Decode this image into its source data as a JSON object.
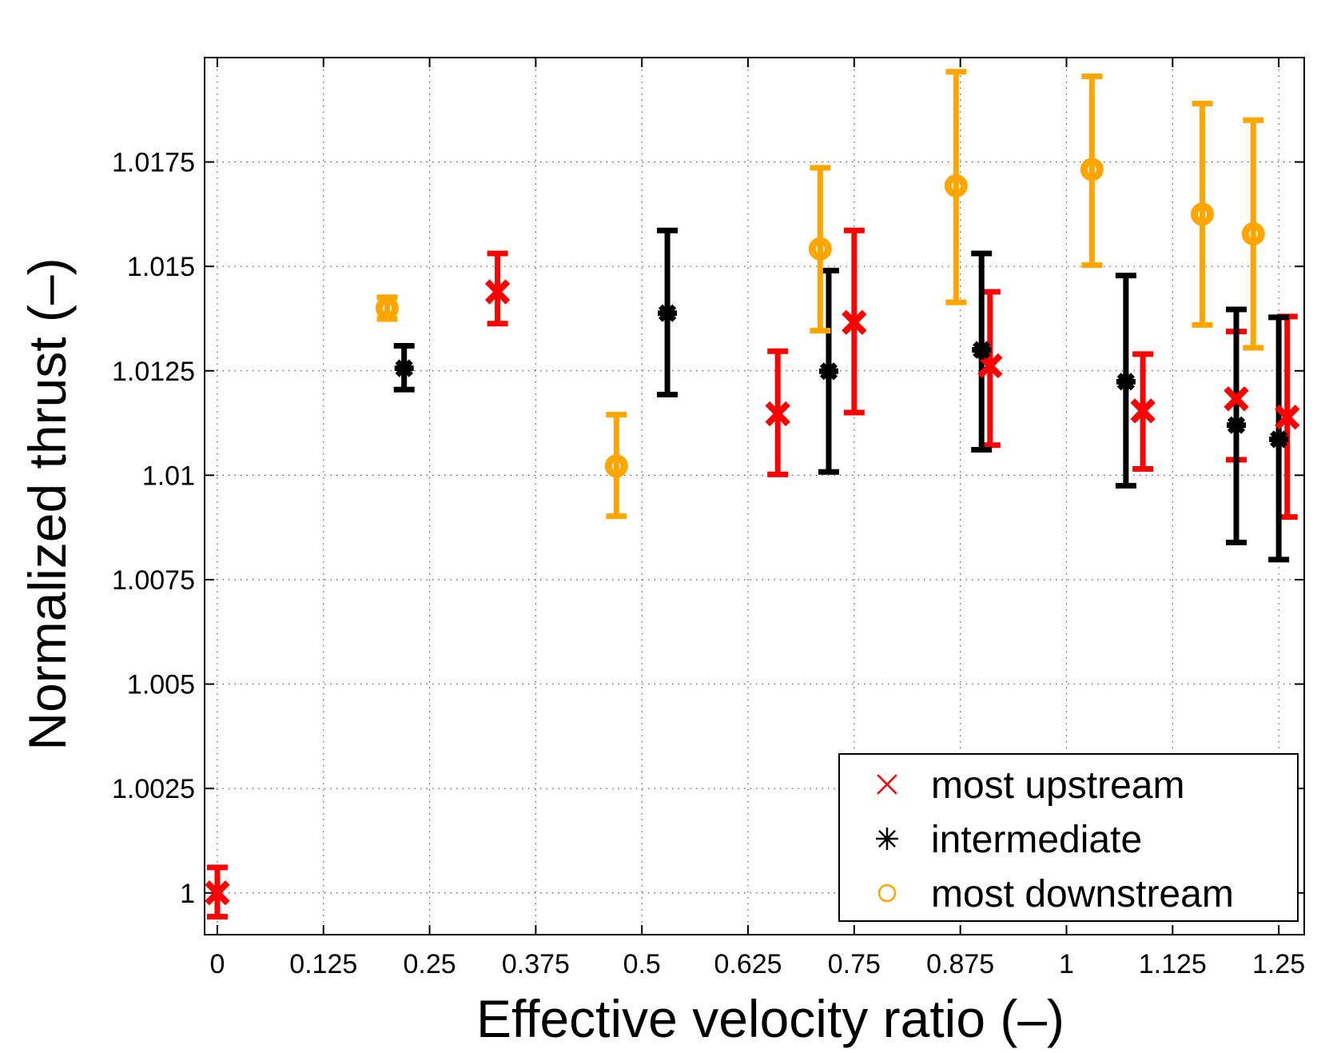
{
  "chart_data": {
    "type": "scatter",
    "title": "",
    "xlabel": "Effective velocity ratio (–)",
    "ylabel": "Normalized thrust (–)",
    "xlim": [
      -0.015,
      1.28
    ],
    "ylim": [
      0.999,
      1.02
    ],
    "x_ticks": [
      0,
      0.125,
      0.25,
      0.375,
      0.5,
      0.625,
      0.75,
      0.875,
      1,
      1.125,
      1.25
    ],
    "x_tick_labels": [
      "0",
      "0.125",
      "0.25",
      "0.375",
      "0.5",
      "0.625",
      "0.75",
      "0.875",
      "1",
      "1.125",
      "1.25"
    ],
    "y_ticks": [
      1,
      1.0025,
      1.005,
      1.0075,
      1.01,
      1.0125,
      1.015,
      1.0175
    ],
    "y_tick_labels": [
      "1",
      "1.0025",
      "1.005",
      "1.0075",
      "1.01",
      "1.0125",
      "1.015",
      "1.0175"
    ],
    "grid": true,
    "legend_position": "bottom-right",
    "series": [
      {
        "name": "most upstream",
        "color": "#ff0000",
        "marker": "x",
        "points": [
          {
            "x": 0.0,
            "y": 1.0,
            "lo": 0.99943,
            "hi": 1.00061
          },
          {
            "x": 0.33,
            "y": 1.01439,
            "lo": 1.01363,
            "hi": 1.01531
          },
          {
            "x": 0.66,
            "y": 1.01147,
            "lo": 1.01002,
            "hi": 1.01297
          },
          {
            "x": 0.75,
            "y": 1.01366,
            "lo": 1.0115,
            "hi": 1.01586
          },
          {
            "x": 0.91,
            "y": 1.01262,
            "lo": 1.01072,
            "hi": 1.01439
          },
          {
            "x": 1.09,
            "y": 1.01154,
            "lo": 1.01015,
            "hi": 1.0129
          },
          {
            "x": 1.2,
            "y": 1.01183,
            "lo": 1.01037,
            "hi": 1.01344
          },
          {
            "x": 1.26,
            "y": 1.01139,
            "lo": 1.009,
            "hi": 1.0138
          }
        ]
      },
      {
        "name": "intermediate",
        "color": "#000000",
        "marker": "asterisk",
        "points": [
          {
            "x": 0.22,
            "y": 1.01256,
            "lo": 1.01205,
            "hi": 1.0131
          },
          {
            "x": 0.53,
            "y": 1.01388,
            "lo": 1.01193,
            "hi": 1.01586
          },
          {
            "x": 0.72,
            "y": 1.01249,
            "lo": 1.01008,
            "hi": 1.0149
          },
          {
            "x": 0.9,
            "y": 1.013,
            "lo": 1.01061,
            "hi": 1.01531
          },
          {
            "x": 1.07,
            "y": 1.01224,
            "lo": 1.00975,
            "hi": 1.01478
          },
          {
            "x": 1.2,
            "y": 1.0112,
            "lo": 1.00839,
            "hi": 1.01397
          },
          {
            "x": 1.25,
            "y": 1.01086,
            "lo": 1.00798,
            "hi": 1.01378
          }
        ]
      },
      {
        "name": "most downstream",
        "color": "#ffa500",
        "marker": "circle",
        "points": [
          {
            "x": 0.2,
            "y": 1.014,
            "lo": 1.01374,
            "hi": 1.01426
          },
          {
            "x": 0.47,
            "y": 1.01022,
            "lo": 1.00902,
            "hi": 1.01145
          },
          {
            "x": 0.71,
            "y": 1.01542,
            "lo": 1.01346,
            "hi": 1.01736
          },
          {
            "x": 0.87,
            "y": 1.01693,
            "lo": 1.01414,
            "hi": 1.01966
          },
          {
            "x": 1.03,
            "y": 1.01732,
            "lo": 1.01503,
            "hi": 1.01955
          },
          {
            "x": 1.16,
            "y": 1.01625,
            "lo": 1.0136,
            "hi": 1.0189
          },
          {
            "x": 1.22,
            "y": 1.01578,
            "lo": 1.01305,
            "hi": 1.0185
          }
        ]
      }
    ]
  }
}
